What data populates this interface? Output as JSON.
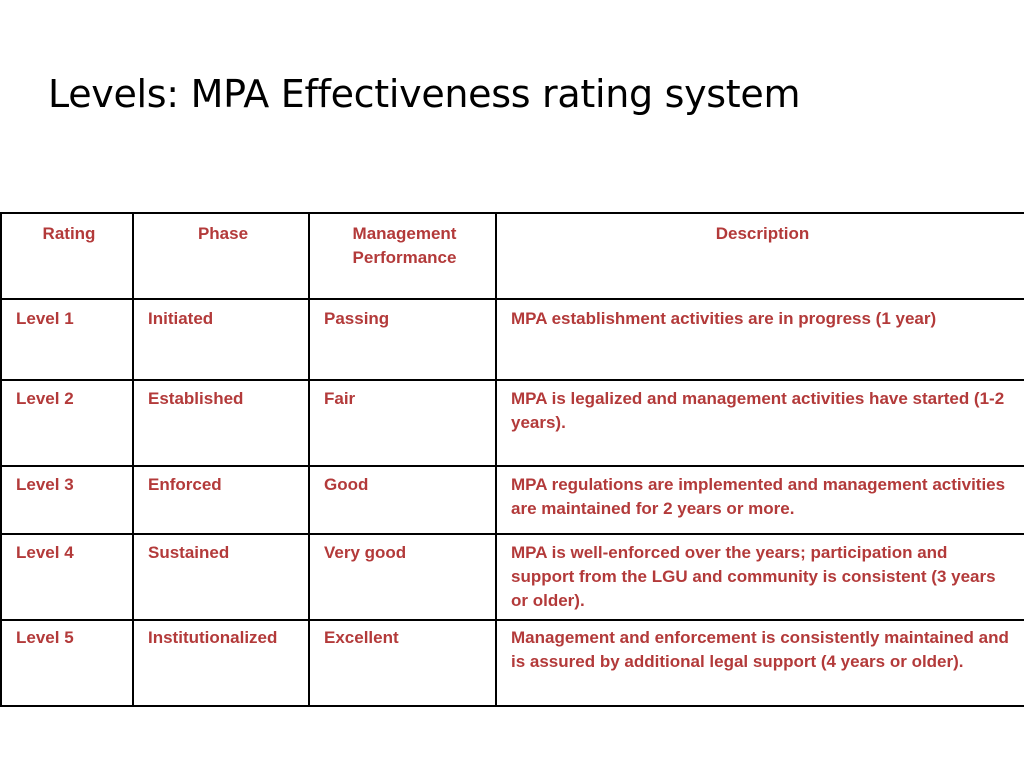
{
  "slide": {
    "title": "Levels: MPA Effectiveness rating system"
  },
  "table": {
    "headers": [
      "Rating",
      "Phase",
      "Management Performance",
      "Description"
    ],
    "rows": [
      {
        "rating": "Level 1",
        "phase": "Initiated",
        "performance": "Passing",
        "description": " MPA establishment activities are in progress (1 year)"
      },
      {
        "rating": "Level 2",
        "phase": "Established",
        "performance": "Fair",
        "description": " MPA is legalized and management activities have started (1-2 years)."
      },
      {
        "rating": "Level 3",
        "phase": "Enforced",
        "performance": "Good",
        "description": " MPA regulations are implemented and management activities are maintained for 2 years or more."
      },
      {
        "rating": "Level 4",
        "phase": "Sustained",
        "performance": "Very good",
        "description": " MPA is well-enforced over the years; participation and support from the LGU and community is consistent (3 years or older)."
      },
      {
        "rating": "Level 5",
        "phase": "Institutionalized",
        "performance": "Excellent",
        "description": " Management and enforcement is consistently maintained and is assured by additional legal support (4 years or older)."
      }
    ],
    "text_color": "#b33a3a",
    "border_color": "#000000"
  }
}
